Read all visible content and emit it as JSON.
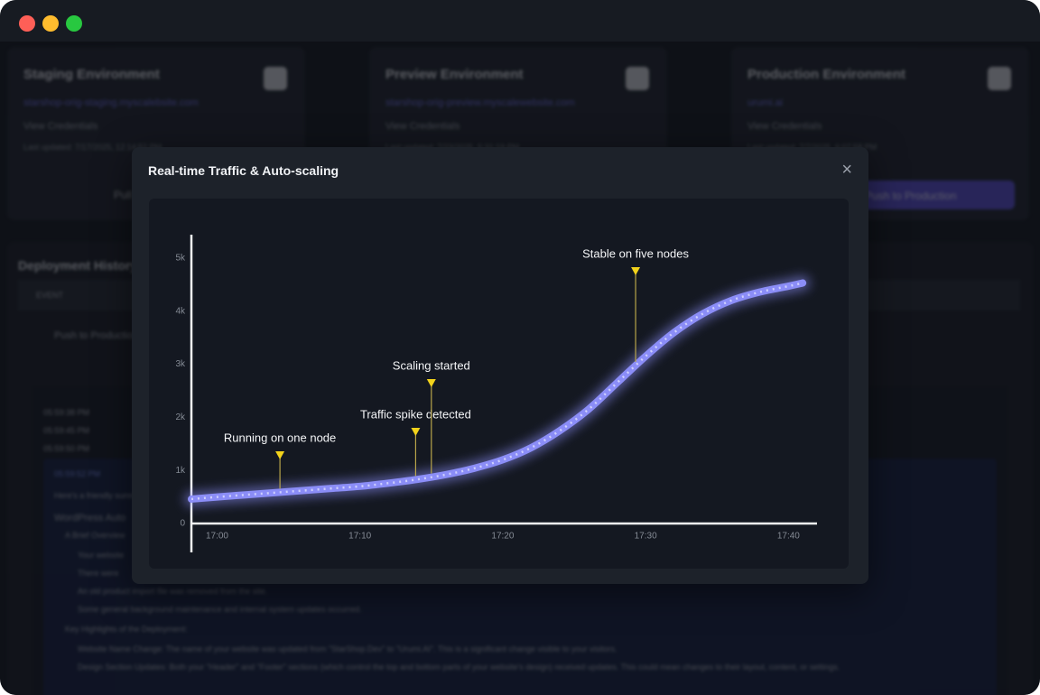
{
  "window": {
    "environments": [
      {
        "title": "Staging Environment",
        "url": "starshop-orig-staging.myscalebsite.com",
        "credentials": "View Credentials",
        "updated": "Last updated: 7/17/2025, 12:14:52 PM",
        "action": "Pull"
      },
      {
        "title": "Preview Environment",
        "url": "starshop-orig-preview.myscalewebsite.com",
        "credentials": "View Credentials",
        "updated": "Last updated: 7/23/2025, 5:31:19 PM"
      },
      {
        "title": "Production Environment",
        "url": "urumi.ai",
        "credentials": "View Credentials",
        "updated": "Last updated: 7/7/2025, 6:07:58 PM",
        "action": "Push to Production"
      }
    ],
    "history": {
      "title": "Deployment History",
      "column": "EVENT",
      "row": "Push to Production",
      "log": [
        "05:59:38 PM",
        "05:59:45 PM",
        "05:59:50 PM"
      ],
      "report_time": "05:59:52 PM",
      "report_lines": [
        "Here's a friendly summary",
        "WordPress Auto",
        "A Brief Overview",
        "Your website",
        "There were",
        "An old product import file was removed from the site.",
        "Some general background maintenance and internal system updates occurred.",
        "Key Highlights of the Deployment:",
        "Website Name Change: The name of your website was updated from \"StarShop.Dev\" to \"Urumi.AI\". This is a significant change visible to your visitors.",
        "Design Section Updates: Both your \"Header\" and \"Footer\" sections (which control the top and bottom parts of your website's design) received updates. This could mean changes to their layout, content, or settings."
      ]
    }
  },
  "modal": {
    "title": "Real-time Traffic & Auto-scaling",
    "close": "×"
  },
  "chart_data": {
    "type": "line",
    "x": [
      1018.2,
      1020,
      1022,
      1024,
      1026,
      1028,
      1030,
      1032,
      1034,
      1036,
      1038,
      1040,
      1042,
      1044,
      1046,
      1048,
      1050,
      1052,
      1054,
      1056,
      1058,
      1060,
      1061
    ],
    "series": [
      {
        "name": "Traffic",
        "color": "#8b8df7",
        "values": [
          460,
          500,
          540,
          580,
          620,
          660,
          700,
          760,
          830,
          920,
          1040,
          1200,
          1430,
          1750,
          2150,
          2650,
          3150,
          3600,
          3950,
          4200,
          4360,
          4470,
          4530
        ]
      }
    ],
    "xlim": [
      1018.2,
      1062
    ],
    "xticks": [
      {
        "value": 1020,
        "label": "17:00"
      },
      {
        "value": 1030,
        "label": "17:10"
      },
      {
        "value": 1040,
        "label": "17:20"
      },
      {
        "value": 1050,
        "label": "17:30"
      },
      {
        "value": 1060,
        "label": "17:40"
      }
    ],
    "ylim": [
      0,
      5440
    ],
    "yticks": [
      0,
      {
        "value": 1000,
        "label": "1k"
      },
      {
        "value": 2000,
        "label": "2k"
      },
      {
        "value": 3000,
        "label": "3k"
      },
      {
        "value": 4000,
        "label": "4k"
      },
      {
        "value": 5000,
        "label": "5k"
      }
    ],
    "annotations": [
      {
        "text": "Running on one node",
        "x": 1024.4
      },
      {
        "text": "Traffic spike detected",
        "x": 1033.9
      },
      {
        "text": "Scaling started",
        "x": 1035
      },
      {
        "text": "Stable on five nodes",
        "x": 1049.3
      }
    ],
    "annotation_color": "#f2d21b"
  }
}
